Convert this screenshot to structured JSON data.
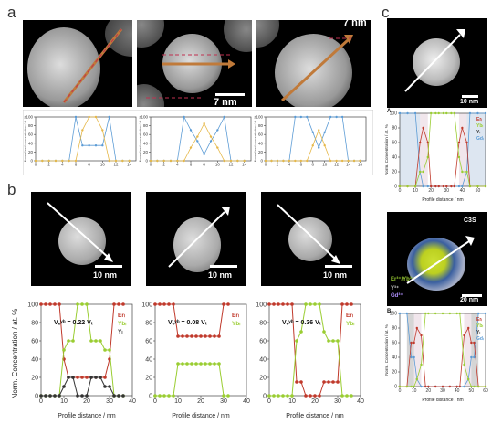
{
  "panels": {
    "a": "a",
    "b": "b",
    "c": "c"
  },
  "scalebars": {
    "a_mid": "7 nm",
    "a_right_partial": "7 nm",
    "b1": "10 nm",
    "b2": "10 nm",
    "b3": "10 nm",
    "c_top": "10 nm",
    "c_bottom": "20 nm"
  },
  "a_plots": {
    "ylabel": "Normalized concentration / at. %",
    "xticks1": [
      "0",
      "2",
      "4",
      "6",
      "8",
      "10",
      "12",
      "14"
    ],
    "xticks2": [
      "0",
      "2",
      "4",
      "6",
      "8",
      "10",
      "12",
      "14"
    ],
    "xticks3": [
      "0",
      "2",
      "4",
      "6",
      "8",
      "10",
      "12",
      "14",
      "16"
    ],
    "yticks": [
      "0",
      "20",
      "40",
      "60",
      "80",
      "100"
    ]
  },
  "b_plots": {
    "ylabel": "Norm. Concentration / at. %",
    "xlabel": "Profile distance / nm",
    "v1": "Vₑʸᵇ = 0.22 Vₜ",
    "v2": "Vₑʸᵇ = 0.08 Vₜ",
    "v3": "Vₑʸᵇ = 0.36 Vₜ",
    "legend": [
      "Erₗ",
      "Ybₗ",
      "Yₗ"
    ],
    "xticks": [
      "0",
      "10",
      "20",
      "30",
      "40"
    ],
    "yticks": [
      "0",
      "20",
      "40",
      "60",
      "80",
      "100"
    ]
  },
  "c_plots": {
    "ylabel": "Norm. Concentration / at. %",
    "xlabel": "Profile distance / nm",
    "legendA": [
      "Erₗ",
      "Ybₗ",
      "Yₗ",
      "Gdₗ"
    ],
    "legendB": [
      "Erₗ",
      "Ybₗ",
      "Yₗ",
      "Gdₗ"
    ],
    "labelA": "A₁",
    "labelB": "B₁",
    "xticksA": [
      "0",
      "10",
      "20",
      "30",
      "40",
      "50"
    ],
    "xticksB": [
      "0",
      "10",
      "20",
      "30",
      "40",
      "50",
      "60"
    ],
    "yticks": [
      "0",
      "20",
      "40",
      "60",
      "80",
      "100"
    ],
    "c3s": "C3S",
    "ion_er_yb": "Er³⁺/Yb³⁺",
    "ion_y": "Y³⁺",
    "ion_gd": "Gd³⁺"
  },
  "chart_data": [
    {
      "type": "line",
      "id": "a1",
      "x": [
        0,
        1,
        2,
        3,
        4,
        5,
        6,
        7,
        8,
        9,
        10,
        11,
        12,
        13,
        14
      ],
      "series": [
        {
          "color": "#5b9bd5",
          "values": [
            0,
            0,
            0,
            0,
            0,
            0,
            100,
            35,
            35,
            35,
            35,
            100,
            0,
            0,
            0
          ]
        },
        {
          "color": "#e6b84a",
          "values": [
            0,
            0,
            0,
            0,
            0,
            0,
            0,
            70,
            100,
            100,
            70,
            0,
            0,
            0,
            0
          ]
        }
      ],
      "xlim": [
        0,
        15
      ],
      "ylim": [
        0,
        100
      ]
    },
    {
      "type": "line",
      "id": "a2",
      "x": [
        0,
        1,
        2,
        3,
        4,
        5,
        6,
        7,
        8,
        9,
        10,
        11,
        12,
        13,
        14
      ],
      "series": [
        {
          "color": "#5b9bd5",
          "values": [
            0,
            0,
            0,
            0,
            0,
            100,
            70,
            45,
            15,
            45,
            70,
            100,
            0,
            0,
            0
          ]
        },
        {
          "color": "#e6b84a",
          "values": [
            0,
            0,
            0,
            0,
            0,
            0,
            30,
            55,
            85,
            55,
            30,
            0,
            0,
            0,
            0
          ]
        }
      ],
      "xlim": [
        0,
        15
      ],
      "ylim": [
        0,
        100
      ]
    },
    {
      "type": "line",
      "id": "a3",
      "x": [
        0,
        1,
        2,
        3,
        4,
        5,
        6,
        7,
        8,
        9,
        10,
        11,
        12,
        13,
        14,
        15,
        16
      ],
      "series": [
        {
          "color": "#5b9bd5",
          "values": [
            0,
            0,
            0,
            0,
            0,
            100,
            100,
            100,
            65,
            30,
            65,
            100,
            100,
            100,
            0,
            0,
            0
          ]
        },
        {
          "color": "#e6b84a",
          "values": [
            0,
            0,
            0,
            0,
            0,
            0,
            0,
            0,
            35,
            70,
            35,
            0,
            0,
            0,
            0,
            0,
            0
          ]
        }
      ],
      "xlim": [
        0,
        17
      ],
      "ylim": [
        0,
        100
      ]
    },
    {
      "type": "line",
      "id": "b1",
      "x": [
        0,
        2,
        4,
        6,
        8,
        10,
        12,
        14,
        16,
        18,
        20,
        22,
        24,
        26,
        28,
        30,
        32,
        34,
        36
      ],
      "series": [
        {
          "name": "Erₗ",
          "color": "#c0392b",
          "values": [
            100,
            100,
            100,
            100,
            100,
            40,
            20,
            20,
            20,
            20,
            20,
            20,
            20,
            20,
            20,
            40,
            100,
            100,
            100
          ]
        },
        {
          "name": "Ybₗ",
          "color": "#9acd32",
          "values": [
            0,
            0,
            0,
            0,
            0,
            50,
            60,
            60,
            100,
            100,
            100,
            60,
            60,
            60,
            50,
            50,
            0,
            0,
            0
          ]
        },
        {
          "name": "Yₗ",
          "color": "#333333",
          "values": [
            0,
            0,
            0,
            0,
            0,
            10,
            20,
            20,
            0,
            0,
            0,
            20,
            20,
            20,
            10,
            10,
            0,
            0,
            0
          ]
        }
      ],
      "xlim": [
        0,
        40
      ],
      "ylim": [
        0,
        100
      ]
    },
    {
      "type": "line",
      "id": "b2",
      "x": [
        0,
        2,
        4,
        6,
        8,
        10,
        12,
        14,
        16,
        18,
        20,
        22,
        24,
        26,
        28,
        30,
        32
      ],
      "series": [
        {
          "name": "Erₗ",
          "color": "#c0392b",
          "values": [
            100,
            100,
            100,
            100,
            100,
            65,
            65,
            65,
            65,
            65,
            65,
            65,
            65,
            65,
            65,
            100,
            100
          ]
        },
        {
          "name": "Ybₗ",
          "color": "#9acd32",
          "values": [
            0,
            0,
            0,
            0,
            0,
            35,
            35,
            35,
            35,
            35,
            35,
            35,
            35,
            35,
            35,
            0,
            0
          ]
        }
      ],
      "xlim": [
        0,
        40
      ],
      "ylim": [
        0,
        100
      ]
    },
    {
      "type": "line",
      "id": "b3",
      "x": [
        0,
        2,
        4,
        6,
        8,
        10,
        12,
        14,
        16,
        18,
        20,
        22,
        24,
        26,
        28,
        30,
        32,
        34,
        36
      ],
      "series": [
        {
          "name": "Erₗ",
          "color": "#c0392b",
          "values": [
            100,
            100,
            100,
            100,
            100,
            100,
            15,
            15,
            0,
            0,
            0,
            0,
            15,
            15,
            15,
            15,
            100,
            100,
            100
          ]
        },
        {
          "name": "Ybₗ",
          "color": "#9acd32",
          "values": [
            0,
            0,
            0,
            0,
            0,
            0,
            60,
            70,
            100,
            100,
            100,
            100,
            70,
            60,
            60,
            60,
            0,
            0,
            0
          ]
        }
      ],
      "xlim": [
        0,
        40
      ],
      "ylim": [
        0,
        100
      ]
    },
    {
      "type": "line",
      "id": "cA",
      "x": [
        0,
        5,
        10,
        13,
        15,
        18,
        20,
        23,
        25,
        28,
        30,
        33,
        35,
        38,
        40,
        43,
        45,
        50,
        55
      ],
      "series": [
        {
          "name": "Gdₗ",
          "color": "#5b9bd5",
          "values": [
            100,
            100,
            100,
            20,
            0,
            0,
            0,
            0,
            0,
            0,
            0,
            0,
            0,
            0,
            0,
            20,
            100,
            100,
            100
          ]
        },
        {
          "name": "Erₗ",
          "color": "#c0392b",
          "values": [
            0,
            0,
            0,
            60,
            80,
            60,
            0,
            0,
            0,
            0,
            0,
            0,
            0,
            60,
            80,
            60,
            0,
            0,
            0
          ]
        },
        {
          "name": "Ybₗ",
          "color": "#9acd32",
          "values": [
            0,
            0,
            0,
            20,
            20,
            40,
            100,
            100,
            100,
            100,
            100,
            100,
            100,
            40,
            20,
            20,
            0,
            0,
            0
          ]
        }
      ],
      "xlim": [
        0,
        55
      ],
      "ylim": [
        0,
        100
      ]
    },
    {
      "type": "line",
      "id": "cB",
      "x": [
        0,
        5,
        8,
        10,
        12,
        15,
        18,
        20,
        25,
        30,
        35,
        40,
        42,
        45,
        48,
        50,
        52,
        55,
        60
      ],
      "series": [
        {
          "name": "Gdₗ",
          "color": "#5b9bd5",
          "values": [
            100,
            100,
            40,
            40,
            10,
            0,
            0,
            0,
            0,
            0,
            0,
            0,
            0,
            0,
            10,
            40,
            40,
            100,
            100
          ]
        },
        {
          "name": "Erₗ",
          "color": "#c0392b",
          "values": [
            0,
            0,
            60,
            60,
            80,
            70,
            0,
            0,
            0,
            0,
            0,
            0,
            0,
            70,
            80,
            60,
            60,
            0,
            0
          ]
        },
        {
          "name": "Ybₗ",
          "color": "#9acd32",
          "values": [
            0,
            0,
            0,
            0,
            10,
            30,
            100,
            100,
            100,
            100,
            100,
            100,
            100,
            30,
            10,
            0,
            0,
            0,
            0
          ]
        }
      ],
      "xlim": [
        0,
        60
      ],
      "ylim": [
        0,
        100
      ]
    }
  ]
}
